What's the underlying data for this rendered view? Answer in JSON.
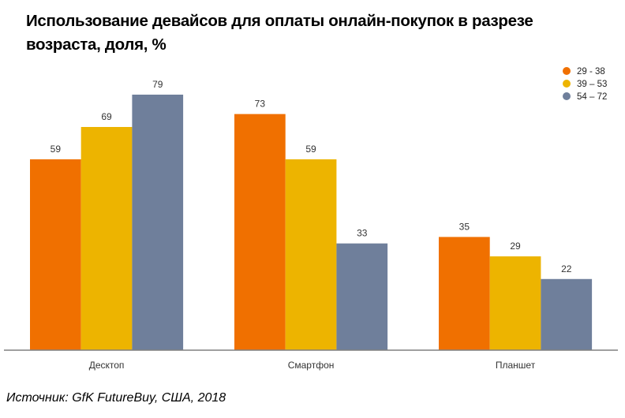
{
  "chart_data": {
    "type": "bar",
    "title": "Использование девайсов для оплаты онлайн-покупок в разрезе возраста, доля, %",
    "xlabel": "",
    "ylabel": "",
    "ylim": [
      0,
      79
    ],
    "grid": false,
    "legend_position": "top-right",
    "categories": [
      "Десктоп",
      "Смартфон",
      "Планшет"
    ],
    "series": [
      {
        "name": "29 - 38",
        "color": "#F07000",
        "values": [
          59,
          73,
          35
        ]
      },
      {
        "name": "39 – 53",
        "color": "#EDB400",
        "values": [
          69,
          59,
          29
        ]
      },
      {
        "name": "54 – 72",
        "color": "#6F7F9B",
        "values": [
          79,
          33,
          22
        ]
      }
    ]
  },
  "source": "Источник: GfK FutureBuy, США, 2018"
}
